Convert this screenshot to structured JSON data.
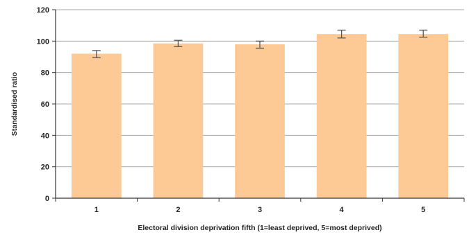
{
  "chart_data": {
    "type": "bar",
    "title": "",
    "xlabel": "Electoral division deprivation fifth (1=least deprived, 5=most deprived)",
    "ylabel": "Standardised ratio",
    "categories": [
      "1",
      "2",
      "3",
      "4",
      "5"
    ],
    "values": [
      92,
      98.5,
      98,
      104.5,
      104.5
    ],
    "error_low": [
      89.5,
      96.5,
      95.5,
      102,
      102.5
    ],
    "error_high": [
      94,
      100.5,
      100,
      107,
      107
    ],
    "ylim": [
      0,
      120
    ],
    "yticks": [
      0,
      20,
      40,
      60,
      80,
      100,
      120
    ],
    "grid": true,
    "legend": "none",
    "colors": {
      "bar": "#fdca96",
      "gridline": "#a8a8a8",
      "axis": "#333333",
      "error_bar": "#555555"
    }
  }
}
